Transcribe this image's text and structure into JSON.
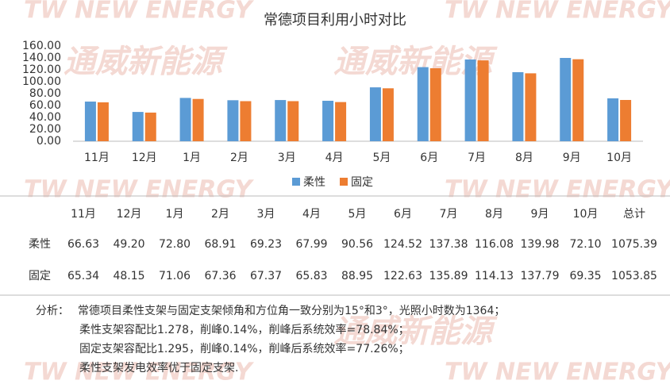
{
  "chart_data": {
    "type": "bar",
    "title": "常德项目利用小时对比",
    "categories": [
      "11月",
      "12月",
      "1月",
      "2月",
      "3月",
      "4月",
      "5月",
      "6月",
      "7月",
      "8月",
      "9月",
      "10月"
    ],
    "series": [
      {
        "name": "柔性",
        "color": "#5b9bd5",
        "values": [
          66.63,
          49.2,
          72.8,
          68.91,
          69.23,
          67.99,
          90.56,
          124.52,
          137.38,
          116.08,
          139.98,
          72.1
        ],
        "value_labels": [
          "66.63",
          "49.20",
          "72.80",
          "68.91",
          "69.23",
          "67.99",
          "90.56",
          "124.52",
          "137.38",
          "116.08",
          "139.98",
          "72.10"
        ],
        "total": 1075.39
      },
      {
        "name": "固定",
        "color": "#ed7d31",
        "values": [
          65.34,
          48.15,
          71.06,
          67.36,
          67.37,
          65.83,
          88.95,
          122.63,
          135.89,
          114.13,
          137.79,
          69.35
        ],
        "value_labels": [
          "65.34",
          "48.15",
          "71.06",
          "67.36",
          "67.37",
          "65.83",
          "88.95",
          "122.63",
          "135.89",
          "114.13",
          "137.79",
          "69.35"
        ],
        "total": 1053.85
      }
    ],
    "ylim": [
      0,
      160
    ],
    "yticks": [
      {
        "value": 0,
        "label": "0.00"
      },
      {
        "value": 20,
        "label": "20.00"
      },
      {
        "value": 40,
        "label": "40.00"
      },
      {
        "value": 60,
        "label": "60.00"
      },
      {
        "value": 80,
        "label": "80.00"
      },
      {
        "value": 100,
        "label": "100.00"
      },
      {
        "value": 120,
        "label": "120.00"
      },
      {
        "value": 140,
        "label": "140.00"
      },
      {
        "value": 160,
        "label": "160.00"
      }
    ],
    "grid": false,
    "legend": "bottom"
  },
  "table": {
    "total_header": "总计"
  },
  "analysis": {
    "label": "分析：",
    "lines": [
      "常德项目柔性支架与固定支架倾角和方位角一致分别为15°和3°，光照小时数为1364；",
      "柔性支架容配比1.278，削峰0.14%，削峰后系统效率=78.84%；",
      "固定支架容配比1.295，削峰0.14%，削峰后系统效率=77.26%；",
      "柔性支架发电效率优于固定支架."
    ]
  },
  "watermark": [
    "TW NEW ENERGY",
    "通威新能源"
  ]
}
